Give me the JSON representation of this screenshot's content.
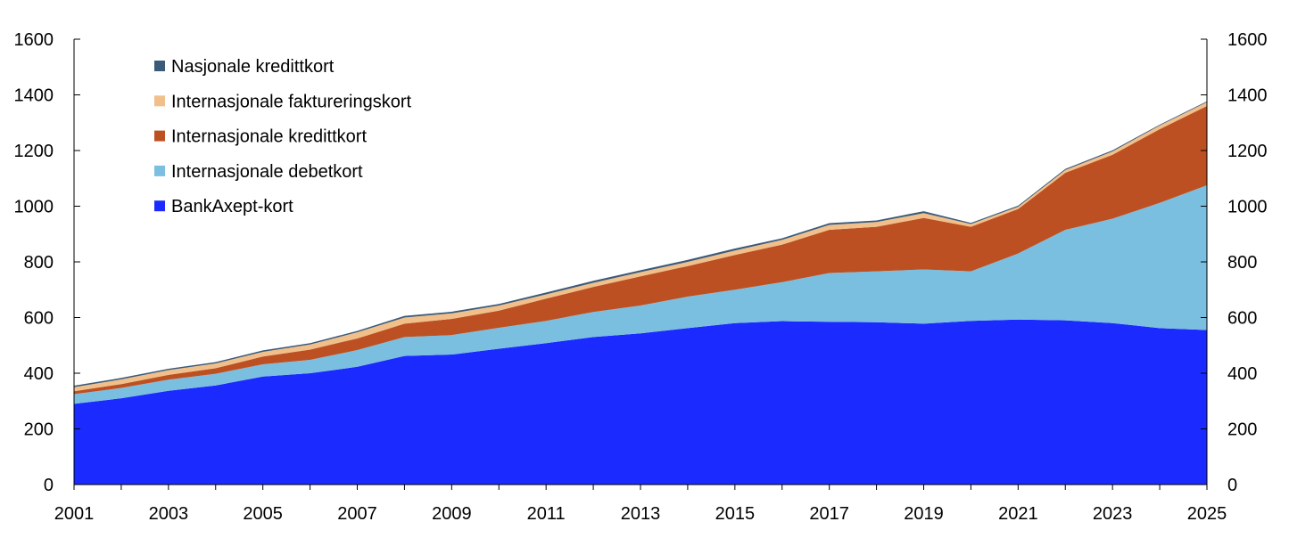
{
  "chart_data": {
    "type": "area",
    "stacked": true,
    "title": "",
    "xlabel": "",
    "ylabel": "",
    "x": [
      2001,
      2002,
      2003,
      2004,
      2005,
      2006,
      2007,
      2008,
      2009,
      2010,
      2011,
      2012,
      2013,
      2014,
      2015,
      2016,
      2017,
      2018,
      2019,
      2020,
      2021,
      2022,
      2023,
      2024,
      2025
    ],
    "x_tick_labels": [
      "2001",
      "2003",
      "2005",
      "2007",
      "2009",
      "2011",
      "2013",
      "2015",
      "2017",
      "2019",
      "2021",
      "2023",
      "2025"
    ],
    "ylim": [
      0,
      1600
    ],
    "y_ticks": [
      0,
      200,
      400,
      600,
      800,
      1000,
      1200,
      1400,
      1600
    ],
    "y_tick_labels": [
      "0",
      "200",
      "400",
      "600",
      "800",
      "1000",
      "1200",
      "1400",
      "1600"
    ],
    "secondary_y_axis": true,
    "grid": false,
    "legend_position": "top-left",
    "series": [
      {
        "name": "BankAxept-kort",
        "color": "#1b2bff",
        "values": [
          290,
          310,
          337,
          356,
          388,
          400,
          423,
          462,
          467,
          488,
          508,
          530,
          543,
          562,
          580,
          587,
          585,
          583,
          578,
          588,
          593,
          590,
          580,
          562,
          555
        ]
      },
      {
        "name": "Internasjonale debetkort",
        "color": "#7bbfe0",
        "values": [
          35,
          37,
          40,
          42,
          44,
          48,
          60,
          68,
          70,
          75,
          80,
          90,
          100,
          113,
          120,
          140,
          175,
          183,
          195,
          178,
          237,
          325,
          375,
          450,
          520
        ]
      },
      {
        "name": "Internasjonale kredittkort",
        "color": "#bd5022",
        "values": [
          10,
          14,
          17,
          20,
          28,
          37,
          42,
          48,
          58,
          62,
          80,
          90,
          105,
          110,
          125,
          135,
          155,
          160,
          185,
          160,
          160,
          205,
          230,
          265,
          285
        ]
      },
      {
        "name": "Internasjonale faktureringskort",
        "color": "#f1bf89",
        "values": [
          15,
          17,
          17,
          17,
          17,
          18,
          22,
          22,
          20,
          18,
          15,
          15,
          15,
          15,
          16,
          17,
          18,
          17,
          17,
          10,
          8,
          10,
          12,
          13,
          14
        ]
      },
      {
        "name": "Nasjonale kredittkort",
        "color": "#3b5a7a",
        "values": [
          5,
          5,
          5,
          5,
          5,
          5,
          5,
          6,
          6,
          6,
          7,
          7,
          7,
          7,
          7,
          6,
          6,
          6,
          7,
          4,
          4,
          4,
          4,
          3,
          3
        ]
      }
    ],
    "legend_order": [
      "Nasjonale kredittkort",
      "Internasjonale faktureringskort",
      "Internasjonale kredittkort",
      "Internasjonale debetkort",
      "BankAxept-kort"
    ]
  }
}
